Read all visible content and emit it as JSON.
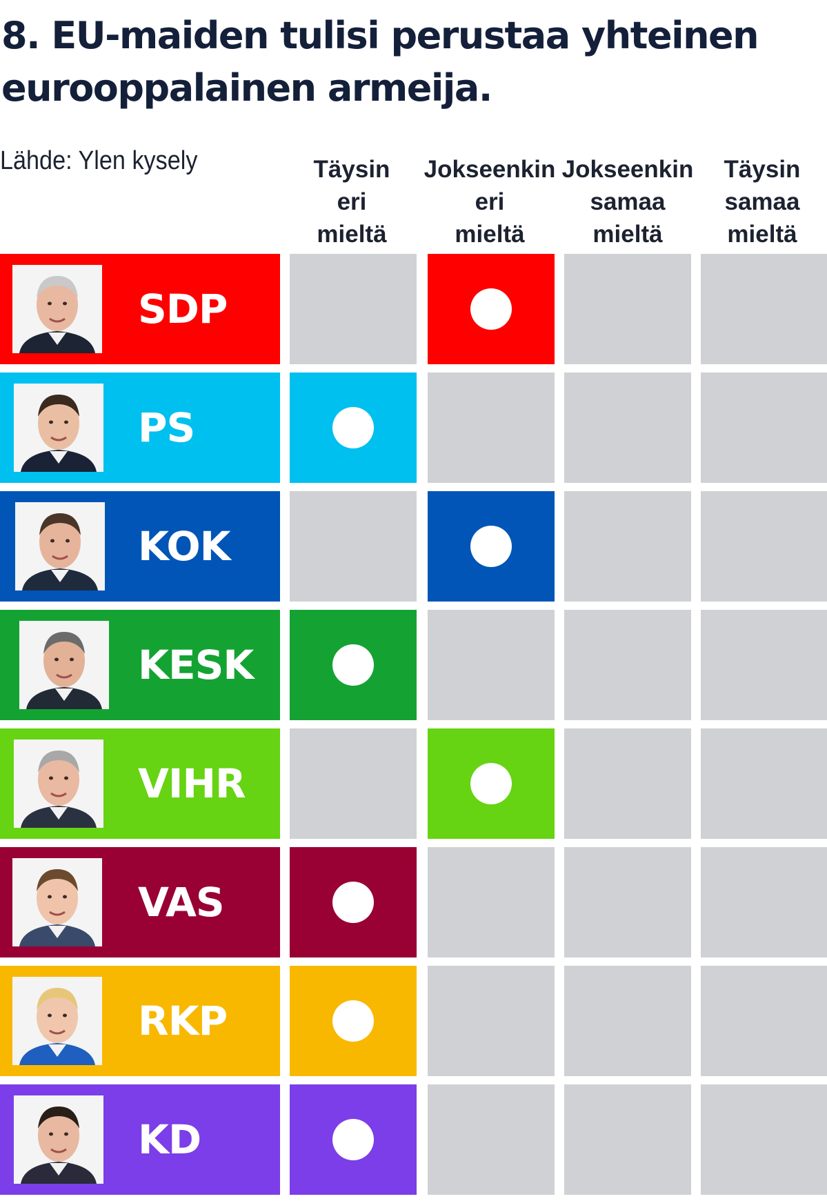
{
  "chart_data": {
    "type": "table",
    "title": "8. EU-maiden tulisi perustaa yhteinen eurooppalainen armeija.",
    "source": "Lähde: Ylen kysely",
    "columns": [
      [
        "Täysin",
        "eri",
        "mieltä"
      ],
      [
        "Jokseenkin",
        "eri",
        "mieltä"
      ],
      [
        "Jokseenkin",
        "samaa",
        "mieltä"
      ],
      [
        "Täysin",
        "samaa",
        "mieltä"
      ]
    ],
    "rows": [
      {
        "party": "SDP",
        "answer_index": 1,
        "color": "#fe0000"
      },
      {
        "party": "PS",
        "answer_index": 0,
        "color": "#00c0ef"
      },
      {
        "party": "KOK",
        "answer_index": 1,
        "color": "#0055b7"
      },
      {
        "party": "KESK",
        "answer_index": 0,
        "color": "#14a332"
      },
      {
        "party": "VIHR",
        "answer_index": 1,
        "color": "#66d313"
      },
      {
        "party": "VAS",
        "answer_index": 0,
        "color": "#990033"
      },
      {
        "party": "RKP",
        "answer_index": 0,
        "color": "#f9b800"
      },
      {
        "party": "KD",
        "answer_index": 0,
        "color": "#7b3ee8"
      }
    ],
    "empty_cell_color": "#cfd1d4"
  }
}
